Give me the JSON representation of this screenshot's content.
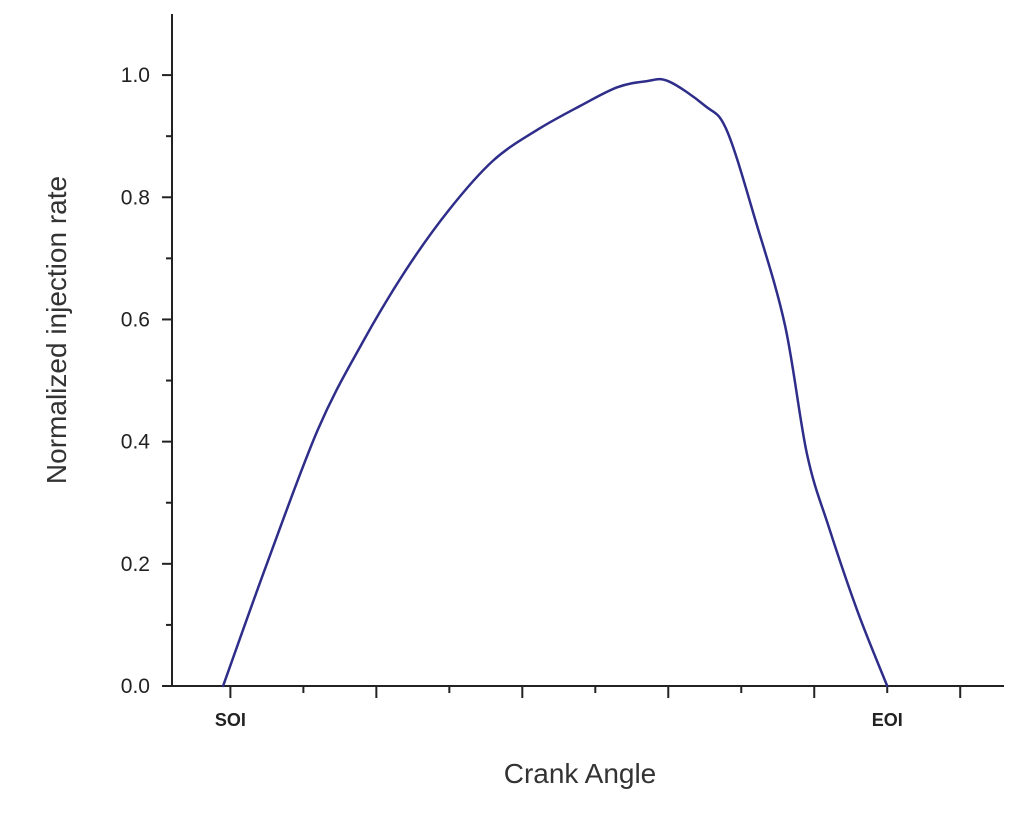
{
  "chart_data": {
    "type": "line",
    "title": "",
    "xlabel": "Crank Angle",
    "ylabel": "Normalized injection rate",
    "ylim": [
      0,
      1.1
    ],
    "xlim": [
      -0.4,
      5.3
    ],
    "y_ticks": [
      "0.0",
      "0.2",
      "0.4",
      "0.6",
      "0.8",
      "1.0"
    ],
    "y_tick_values": [
      0,
      0.2,
      0.4,
      0.6,
      0.8,
      1.0
    ],
    "x_major_ticks": [
      0,
      1,
      2,
      3,
      4,
      5
    ],
    "x_minor_ticks": [
      0.5,
      1.5,
      2.5,
      3.5,
      4.5
    ],
    "x_event_labels": [
      {
        "label": "SOI",
        "x": 0.0
      },
      {
        "label": "EOI",
        "x": 4.5
      }
    ],
    "grid": false,
    "legend": "none",
    "line_color": "#2e2e8a",
    "series": [
      {
        "x": [
          -0.05,
          0.25,
          0.6,
          0.9,
          1.2,
          1.5,
          1.8,
          2.1,
          2.4,
          2.65,
          2.85,
          3.0,
          3.25,
          3.4,
          3.6,
          3.8,
          3.95,
          4.1,
          4.3,
          4.5
        ],
        "values": [
          0.0,
          0.2,
          0.42,
          0.56,
          0.68,
          0.78,
          0.86,
          0.91,
          0.95,
          0.98,
          0.99,
          0.99,
          0.95,
          0.91,
          0.76,
          0.59,
          0.38,
          0.26,
          0.12,
          0.0
        ]
      }
    ]
  }
}
